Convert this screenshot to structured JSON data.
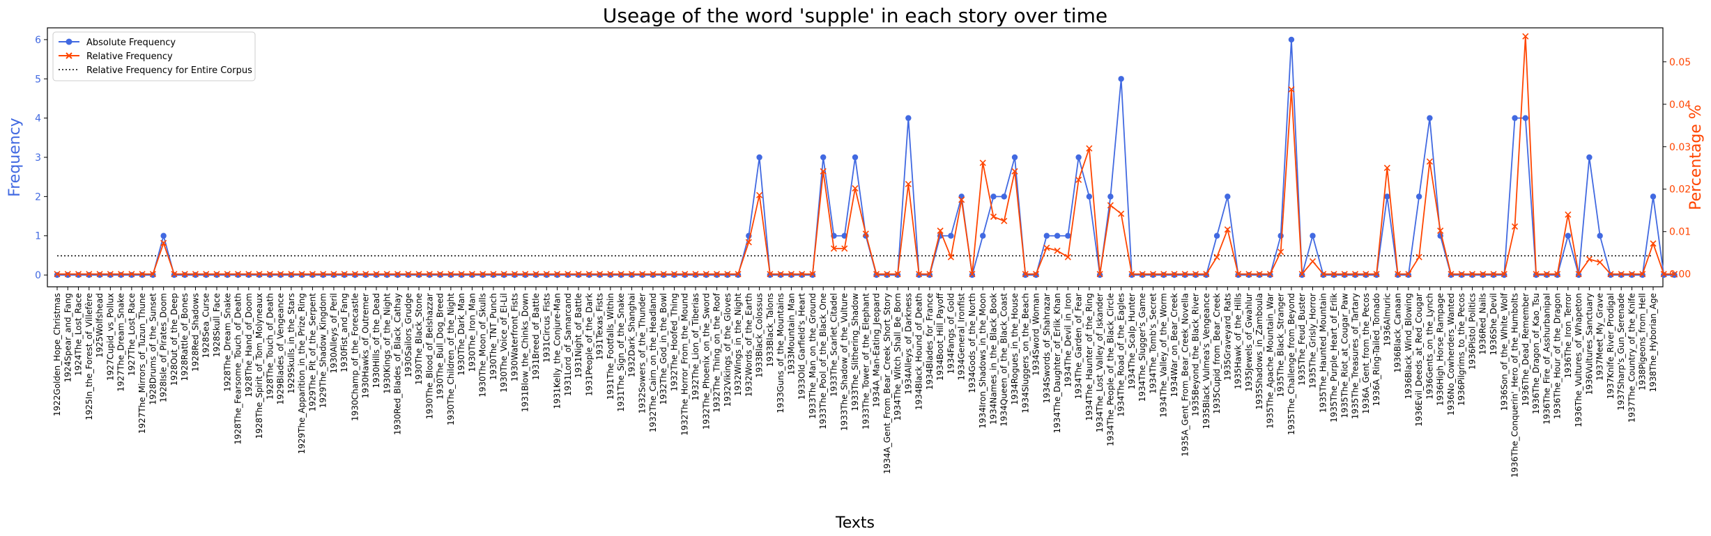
{
  "chart_data": {
    "type": "line",
    "title": "Useage of the word 'supple' in each story over time",
    "xlabel": "Texts",
    "ylabel_left": "Frequency",
    "ylabel_right": "Percentage %",
    "ylim_left": [
      -0.3,
      6.3
    ],
    "ylim_right": [
      -0.003,
      0.058
    ],
    "yticks_left": [
      "0",
      "1",
      "2",
      "3",
      "4",
      "5",
      "6"
    ],
    "yticks_right": [
      "0.00",
      "0.01",
      "0.02",
      "0.03",
      "0.04",
      "0.05"
    ],
    "legend_position": "top-left",
    "grid": false,
    "colors": {
      "absolute": "#4169e1",
      "relative": "#ff4500",
      "corpus": "#000000"
    },
    "series": [
      {
        "name": "Absolute Frequency",
        "axis": "left",
        "marker": "circle"
      },
      {
        "name": "Relative Frequency",
        "axis": "right",
        "marker": "x"
      },
      {
        "name": "Relative Frequency for Entire Corpus",
        "axis": "right",
        "style": "dotted"
      }
    ],
    "corpus_relative_frequency": 0.0043,
    "categories": [
      "1922Golden_Hope_Christmas",
      "1924Spear_and_Fang",
      "1924The_Lost_Race",
      "1925In_the_Forest_of_Villefère",
      "1925Wolfshead",
      "1927Cupid_vs_Pollux",
      "1927The_Dream_Snake",
      "1927The_Lost_Race",
      "1927The_Mirrors_of_Tuzun_Thune",
      "1928Drums_of_the_Sunset",
      "1928Isle_of_Pirates_Doom",
      "1928Out_of_the_Deep",
      "1928Rattle_of_Bones",
      "1928Red_Shadows",
      "1928Sea_Curse",
      "1928Skull_Face",
      "1928The_Dream_Snake",
      "1928The_Fearsome_Touch_of_Death",
      "1928The_Hand_of_Doom",
      "1928The_Spirit_of_Tom_Molyneaux",
      "1928The_Touch_of_Death",
      "1929Blades_of_Vengeance",
      "1929Skulls_in_the_Stars",
      "1929The_Apparition_in_the_Prize_Ring",
      "1929The_Pit_of_the_Serpent",
      "1929The_Shadow_Kingdom",
      "1930Alleys_of_Peril",
      "1930Fist_and_Fang",
      "1930Champ_of_the_Forecastle",
      "1930Hawks_of_Outremer",
      "1930Hills_of_the_Dead",
      "1930Kings_of_the_Night",
      "1930Red_Blades_of_Black_Cathay",
      "1930Sailors_Grudge",
      "1930The_Black_Stone",
      "1930The_Blood_of_Belshazzar",
      "1930The_Bull_Dog_Breed",
      "1930The_Children_of_the_Night",
      "1930The_Dark_Man",
      "1930The_Iron_Man",
      "1930The_Moon_of_Skulls",
      "1930The_TNT_Punch",
      "1930The_Voice_of_El-Lil",
      "1930Waterfront_Fists",
      "1931Blow_the_Chinks_Down",
      "1931Breed_of_Battle",
      "1931Circus_Fists",
      "1931Kelly_the_Conjure-Man",
      "1931Lord_of_Samarcand",
      "1931Night_of_Battle",
      "1931People_of_the_Dark",
      "1931Texas_Fists",
      "1931The_Footfalls_Within",
      "1931The_Sign_of_the_Snake",
      "1932Dark_Shanghai",
      "1932Sowers_of_the_Thunder",
      "1932The_Cairn_on_the_Headland",
      "1932The_God_in_the_Bowl",
      "1932The_Hoofed_Thing",
      "1932The_Horror_From_the_Mound",
      "1932The_Lion_of_Tiberias",
      "1932The_Phoenix_on_the_Sword",
      "1932The_Thing_on_the_Roof",
      "1932Vikings_of_the_Gloves",
      "1932Wings_in_the_Night",
      "1932Words_of_the_Earth",
      "1933Black_Colossus",
      "1933Black_Talons",
      "1933Guns_of_the_Mountains",
      "1933Mountain_Man",
      "1933Old_Garfield's_Heart",
      "1933The_Man_on_the_Ground",
      "1933The_Pool_of_the_Black_One",
      "1933The_Scarlet_Citadel",
      "1933The_Shadow_of_the_Vulture",
      "1933The_Slithering_Shadow",
      "1933The_Tower_of_the_Elephant",
      "1934A_Man-Eating_Jeopard",
      "1934A_Gent_From_Bear_Creek_Short_Story",
      "1934The_Witch_Shall_Be_Born",
      "1934Alleys_of_Darkness",
      "1934Black_Hound_of_Death",
      "1934Blades_for_France",
      "1934Boot_Hill_Payoff",
      "1934Fangs_of_Gold",
      "1934General_Ironfist",
      "1934Gods_of_the_North",
      "1934Iron_Shadows_in_the_Moon",
      "1934Names_in_the_Black_Book",
      "1934Queen_of_the_Black_Coast",
      "1934Rogues_in_the_House",
      "1934Sluggers_on_the_Beach",
      "1934Sword_Woman",
      "1934Swords_of_Shahrazar",
      "1934The_Daughter_of_Erlik_Khan",
      "1934The_Devil_in_Iron",
      "1934The_Garden_of_Fear",
      "1934The_Haunter_of_the_Ring",
      "1934The_Lost_Valley_of_Iskander",
      "1934The_People_of_the_Black_Circle",
      "1934The_Road_of_the_Eagles",
      "1934The_Scalp_Hunter",
      "1934The_Slugger's_Game",
      "1934The_Tomb's_Secret",
      "1934The_Valley_of_the_Worm",
      "1934War_on_Bear_Creek",
      "1935A_Gent_From_Bear_Creek_Novella",
      "1935Beyond_the_Black_River",
      "1935Black_Vulmea's_Vengeance",
      "1935Cupid_from_Bear_Creek",
      "1935Graveyard_Rats",
      "1935Hawk_of_the_Hills",
      "1935Jewels_of_Gwahlur",
      "1935Shadows_in_Zamboula",
      "1935The_Apache_Mountain_War",
      "1935The_Black_Stranger",
      "1935The_Challenge_from_Beyond",
      "1935The_Feud_Buster",
      "1935The_Grisly_Horror",
      "1935The_Haunted_Mountain",
      "1935The_Purple_Heart_of_Erlik",
      "1935The_Riot_at_Cougar_Paw",
      "1935The_Treasures_of_Tartary",
      "1936A_Gent_from_the_Pecos",
      "1936A_Ring-Tailed_Tornado",
      "1936Almuric",
      "1936Black_Canaan",
      "1936Black_Wind_Blowing",
      "1936Evil_Deeds_at_Red_Cougar",
      "1936Gents_on_the_Lynch",
      "1936High_Horse_Rampage",
      "1936No_Cowherders_Wanted",
      "1936Pilgrims_to_the_Pecos",
      "1936Pistol_Politics",
      "1936Red_Nails",
      "1936She_Devil",
      "1936Son_of_the_White_Wolf",
      "1936The_Conquerin'_Hero_of_the_Humbolts",
      "1936The_Dead_Remember",
      "1936The_Dragon_of_Kao_Tsu",
      "1936The_Fire_of_Asshurbanipal",
      "1936The_Hour_of_the_Dragon",
      "1936The_Iron_Terror",
      "1936The_Vultures_of_Whapeton",
      "1936Vultures_Sanctuary",
      "1937Meet_My_Grave",
      "1937Knife_River_Prodigal",
      "1937Sharp's_Gun_Serenade",
      "1937The_Country_of_the_Knife",
      "1938Pigeons_from_Hell",
      "1938The_Hyborian_Age"
    ],
    "absolute": [
      0,
      0,
      0,
      0,
      0,
      0,
      0,
      0,
      0,
      0,
      1,
      0,
      0,
      0,
      0,
      0,
      0,
      0,
      0,
      0,
      0,
      0,
      0,
      0,
      0,
      0,
      0,
      0,
      0,
      0,
      0,
      0,
      0,
      0,
      0,
      0,
      0,
      0,
      0,
      0,
      0,
      0,
      0,
      0,
      0,
      0,
      0,
      0,
      0,
      0,
      0,
      0,
      0,
      0,
      0,
      0,
      0,
      0,
      0,
      0,
      0,
      0,
      0,
      0,
      0,
      1,
      3,
      0,
      0,
      0,
      0,
      0,
      3,
      1,
      1,
      3,
      1,
      0,
      0,
      0,
      4,
      0,
      0,
      1,
      1,
      2,
      0,
      1,
      2,
      2,
      3,
      0,
      0,
      1,
      1,
      1,
      3,
      2,
      0,
      2,
      5,
      0,
      0,
      0,
      0,
      0,
      0,
      0,
      0,
      1,
      2,
      0,
      0,
      0,
      0,
      1,
      6,
      0,
      1,
      0,
      0,
      0,
      0,
      0,
      0,
      2,
      0,
      0,
      2,
      4,
      1,
      0,
      0,
      0,
      0,
      0,
      0,
      4,
      4,
      0,
      0,
      0,
      1,
      0,
      3,
      1,
      0,
      0,
      0,
      0,
      2,
      0,
      0
    ],
    "relative": [
      0,
      0,
      0,
      0,
      0,
      0,
      0,
      0,
      0,
      0,
      0.0073,
      0,
      0,
      0,
      0,
      0,
      0,
      0,
      0,
      0,
      0,
      0,
      0,
      0,
      0,
      0,
      0,
      0,
      0,
      0,
      0,
      0,
      0,
      0,
      0,
      0,
      0,
      0,
      0,
      0,
      0,
      0,
      0,
      0,
      0,
      0,
      0,
      0,
      0,
      0,
      0,
      0,
      0,
      0,
      0,
      0,
      0,
      0,
      0,
      0,
      0,
      0,
      0,
      0,
      0,
      0.0075,
      0.0186,
      0,
      0,
      0,
      0,
      0,
      0.0242,
      0.006,
      0.006,
      0.0202,
      0.0095,
      0,
      0,
      0,
      0.0212,
      0,
      0,
      0.0102,
      0.004,
      0.0175,
      0,
      0.0262,
      0.0135,
      0.0125,
      0.0242,
      0,
      0,
      0.0062,
      0.0055,
      0.004,
      0.0222,
      0.0296,
      0,
      0.0162,
      0.0142,
      0,
      0,
      0,
      0,
      0,
      0,
      0,
      0,
      0.004,
      0.0105,
      0,
      0,
      0,
      0,
      0.0052,
      0.0435,
      0,
      0.003,
      0,
      0,
      0,
      0,
      0,
      0,
      0.025,
      0,
      0,
      0.004,
      0.0265,
      0.0102,
      0,
      0,
      0,
      0,
      0,
      0,
      0.0112,
      0.056,
      0,
      0,
      0,
      0.014,
      0,
      0.0035,
      0.0028,
      0,
      0,
      0,
      0,
      0.0072,
      0,
      0
    ]
  }
}
